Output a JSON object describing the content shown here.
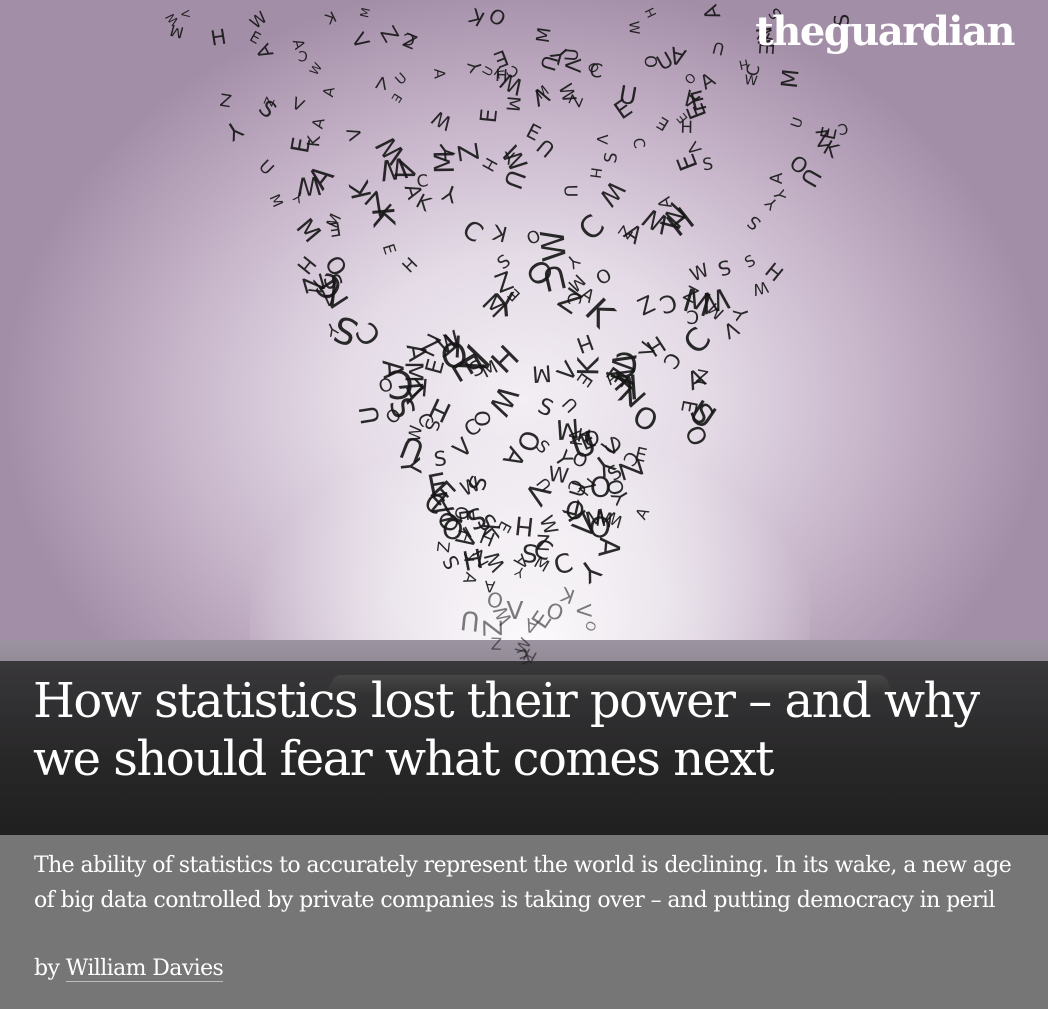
{
  "masthead": {
    "logo": "theguardian"
  },
  "article": {
    "headline": "How statistics lost their power – and why we should fear what comes next",
    "standfirst": "The ability of statistics to accurately represent the world is declining. In its wake, a new age of big data controlled by private companies is taking over – and putting democracy in peril",
    "byline_prefix": "by",
    "author": "William Davies"
  },
  "colors": {
    "headline_band": "#222222",
    "standfirst_bg": "#767676",
    "text": "#ffffff"
  }
}
